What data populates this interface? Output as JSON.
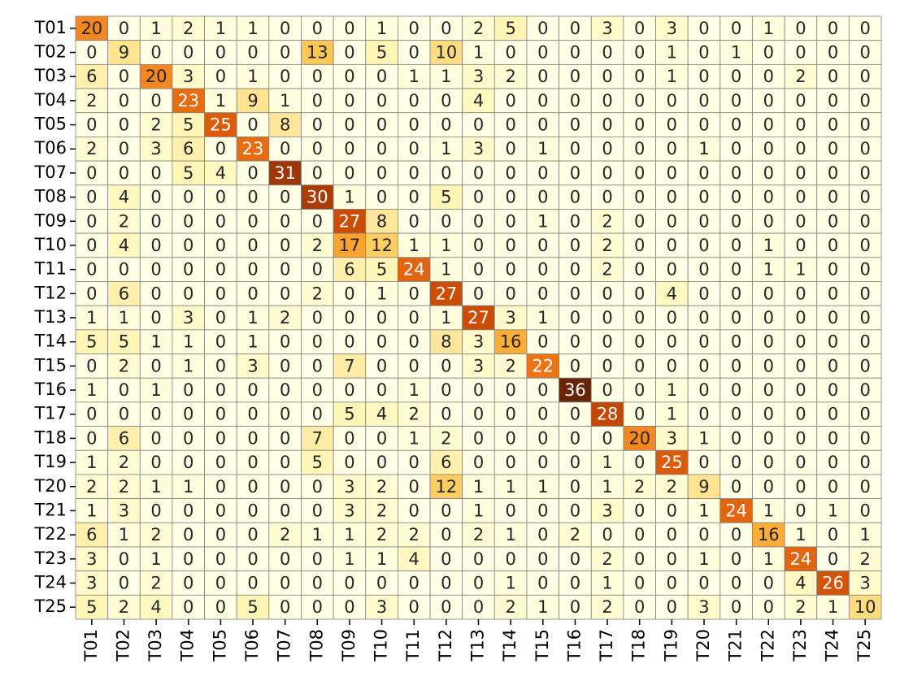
{
  "chart_data": {
    "type": "heatmap",
    "title": "",
    "xlabel": "",
    "ylabel": "",
    "colormap": "YlOrBr",
    "vmin": 0,
    "vmax": 36,
    "grid": true,
    "grid_color": "#808080",
    "x_labels": [
      "T01",
      "T02",
      "T03",
      "T04",
      "T05",
      "T06",
      "T07",
      "T08",
      "T09",
      "T10",
      "T11",
      "T12",
      "T13",
      "T14",
      "T15",
      "T16",
      "T17",
      "T18",
      "T19",
      "T20",
      "T21",
      "T22",
      "T23",
      "T24",
      "T25"
    ],
    "y_labels": [
      "T01",
      "T02",
      "T03",
      "T04",
      "T05",
      "T06",
      "T07",
      "T08",
      "T09",
      "T10",
      "T11",
      "T12",
      "T13",
      "T14",
      "T15",
      "T16",
      "T17",
      "T18",
      "T19",
      "T20",
      "T21",
      "T22",
      "T23",
      "T24",
      "T25"
    ],
    "values": [
      [
        20,
        0,
        1,
        2,
        1,
        1,
        0,
        0,
        0,
        1,
        0,
        0,
        2,
        5,
        0,
        0,
        3,
        0,
        3,
        0,
        0,
        1,
        0,
        0,
        0
      ],
      [
        0,
        9,
        0,
        0,
        0,
        0,
        0,
        13,
        0,
        5,
        0,
        10,
        1,
        0,
        0,
        0,
        0,
        0,
        1,
        0,
        1,
        0,
        0,
        0,
        0
      ],
      [
        6,
        0,
        20,
        3,
        0,
        1,
        0,
        0,
        0,
        0,
        1,
        1,
        3,
        2,
        0,
        0,
        0,
        0,
        1,
        0,
        0,
        0,
        2,
        0,
        0
      ],
      [
        2,
        0,
        0,
        23,
        1,
        9,
        1,
        0,
        0,
        0,
        0,
        0,
        4,
        0,
        0,
        0,
        0,
        0,
        0,
        0,
        0,
        0,
        0,
        0,
        0
      ],
      [
        0,
        0,
        2,
        5,
        25,
        0,
        8,
        0,
        0,
        0,
        0,
        0,
        0,
        0,
        0,
        0,
        0,
        0,
        0,
        0,
        0,
        0,
        0,
        0,
        0
      ],
      [
        2,
        0,
        3,
        6,
        0,
        23,
        0,
        0,
        0,
        0,
        0,
        1,
        3,
        0,
        1,
        0,
        0,
        0,
        0,
        1,
        0,
        0,
        0,
        0,
        0
      ],
      [
        0,
        0,
        0,
        5,
        4,
        0,
        31,
        0,
        0,
        0,
        0,
        0,
        0,
        0,
        0,
        0,
        0,
        0,
        0,
        0,
        0,
        0,
        0,
        0,
        0
      ],
      [
        0,
        4,
        0,
        0,
        0,
        0,
        0,
        30,
        1,
        0,
        0,
        5,
        0,
        0,
        0,
        0,
        0,
        0,
        0,
        0,
        0,
        0,
        0,
        0,
        0
      ],
      [
        0,
        2,
        0,
        0,
        0,
        0,
        0,
        0,
        27,
        8,
        0,
        0,
        0,
        0,
        1,
        0,
        2,
        0,
        0,
        0,
        0,
        0,
        0,
        0,
        0
      ],
      [
        0,
        4,
        0,
        0,
        0,
        0,
        0,
        2,
        17,
        12,
        1,
        1,
        0,
        0,
        0,
        0,
        2,
        0,
        0,
        0,
        0,
        1,
        0,
        0,
        0
      ],
      [
        0,
        0,
        0,
        0,
        0,
        0,
        0,
        0,
        6,
        5,
        24,
        1,
        0,
        0,
        0,
        0,
        2,
        0,
        0,
        0,
        0,
        1,
        1,
        0,
        0
      ],
      [
        0,
        6,
        0,
        0,
        0,
        0,
        0,
        2,
        0,
        1,
        0,
        27,
        0,
        0,
        0,
        0,
        0,
        0,
        4,
        0,
        0,
        0,
        0,
        0,
        0
      ],
      [
        1,
        1,
        0,
        3,
        0,
        1,
        2,
        0,
        0,
        0,
        0,
        1,
        27,
        3,
        1,
        0,
        0,
        0,
        0,
        0,
        0,
        0,
        0,
        0,
        0
      ],
      [
        5,
        5,
        1,
        1,
        0,
        1,
        0,
        0,
        0,
        0,
        0,
        8,
        3,
        16,
        0,
        0,
        0,
        0,
        0,
        0,
        0,
        0,
        0,
        0,
        0
      ],
      [
        0,
        2,
        0,
        1,
        0,
        3,
        0,
        0,
        7,
        0,
        0,
        0,
        3,
        2,
        22,
        0,
        0,
        0,
        0,
        0,
        0,
        0,
        0,
        0,
        0
      ],
      [
        1,
        0,
        1,
        0,
        0,
        0,
        0,
        0,
        0,
        0,
        1,
        0,
        0,
        0,
        0,
        36,
        0,
        0,
        1,
        0,
        0,
        0,
        0,
        0,
        0
      ],
      [
        0,
        0,
        0,
        0,
        0,
        0,
        0,
        0,
        5,
        4,
        2,
        0,
        0,
        0,
        0,
        0,
        28,
        0,
        1,
        0,
        0,
        0,
        0,
        0,
        0
      ],
      [
        0,
        6,
        0,
        0,
        0,
        0,
        0,
        7,
        0,
        0,
        1,
        2,
        0,
        0,
        0,
        0,
        0,
        20,
        3,
        1,
        0,
        0,
        0,
        0,
        0
      ],
      [
        1,
        2,
        0,
        0,
        0,
        0,
        0,
        5,
        0,
        0,
        0,
        6,
        0,
        0,
        0,
        0,
        1,
        0,
        25,
        0,
        0,
        0,
        0,
        0,
        0
      ],
      [
        2,
        2,
        1,
        1,
        0,
        0,
        0,
        0,
        3,
        2,
        0,
        12,
        1,
        1,
        1,
        0,
        1,
        2,
        2,
        9,
        0,
        0,
        0,
        0,
        0
      ],
      [
        1,
        3,
        0,
        0,
        0,
        0,
        0,
        0,
        3,
        2,
        0,
        0,
        1,
        0,
        0,
        0,
        3,
        0,
        0,
        1,
        24,
        1,
        0,
        1,
        0
      ],
      [
        6,
        1,
        2,
        0,
        0,
        0,
        2,
        1,
        1,
        2,
        2,
        0,
        2,
        1,
        0,
        2,
        0,
        0,
        0,
        0,
        0,
        16,
        1,
        0,
        1
      ],
      [
        3,
        0,
        1,
        0,
        0,
        0,
        0,
        0,
        1,
        1,
        4,
        0,
        0,
        0,
        0,
        0,
        2,
        0,
        0,
        1,
        0,
        1,
        24,
        0,
        2
      ],
      [
        3,
        0,
        2,
        0,
        0,
        0,
        0,
        0,
        0,
        0,
        0,
        0,
        0,
        1,
        0,
        0,
        1,
        0,
        0,
        0,
        0,
        0,
        4,
        26,
        3
      ],
      [
        5,
        2,
        4,
        0,
        0,
        5,
        0,
        0,
        0,
        3,
        0,
        0,
        0,
        2,
        1,
        0,
        2,
        0,
        0,
        3,
        0,
        0,
        2,
        1,
        10
      ]
    ]
  }
}
